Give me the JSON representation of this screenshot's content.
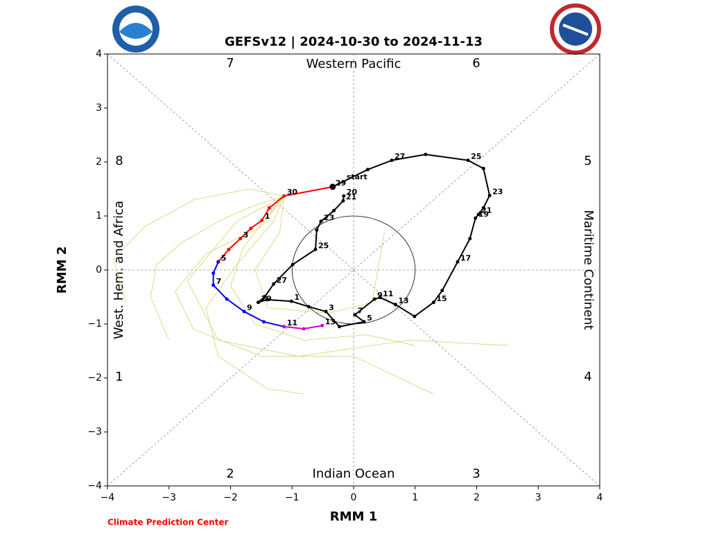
{
  "chart_data": {
    "type": "line",
    "title": "GEFSv12 | 2024-10-30 to 2024-11-13",
    "x_label": "RMM 1",
    "y_label": "RMM 2",
    "xlim": [
      -4,
      4
    ],
    "ylim": [
      -4,
      4
    ],
    "xticks": [
      {
        "value": -4,
        "label": "−4"
      },
      {
        "value": -3,
        "label": "−3"
      },
      {
        "value": -2,
        "label": "−2"
      },
      {
        "value": -1,
        "label": "−1"
      },
      0,
      1,
      2,
      3,
      4
    ],
    "yticks": [
      {
        "value": -4,
        "label": "−4"
      },
      {
        "value": -3,
        "label": "−3"
      },
      {
        "value": -2,
        "label": "−2"
      },
      {
        "value": -1,
        "label": "−1"
      },
      0,
      1,
      2,
      3,
      4
    ],
    "regions": {
      "top": "Western Pacific",
      "bottom": "Indian Ocean",
      "left": "West. Hem. and Africa",
      "right": "Maritime Continent"
    },
    "phases": [
      "1",
      "2",
      "3",
      "4",
      "5",
      "6",
      "7",
      "8"
    ],
    "start_label": "start",
    "credit": "Climate Prediction Center",
    "series": [
      {
        "role": "ensemble",
        "color": "#d2d26a",
        "x": [
          -1.13,
          -1.6,
          -2.2,
          -2.8,
          -3.2,
          -3.3,
          -3.0
        ],
        "y": [
          1.37,
          1.2,
          0.9,
          0.5,
          0.1,
          -0.5,
          -1.3
        ]
      },
      {
        "role": "ensemble",
        "color": "#d2d26a",
        "x": [
          -1.13,
          -1.4,
          -1.8,
          -2.0,
          -1.6,
          -0.8,
          0.2,
          1.0
        ],
        "y": [
          1.37,
          1.0,
          0.4,
          -0.3,
          -1.0,
          -1.3,
          -1.2,
          -1.4
        ]
      },
      {
        "role": "ensemble",
        "color": "#d2d26a",
        "x": [
          -1.13,
          -1.7,
          -2.6,
          -3.4,
          -3.9,
          -3.7
        ],
        "y": [
          1.37,
          1.5,
          1.3,
          0.8,
          0.2,
          -0.6
        ]
      },
      {
        "role": "ensemble",
        "color": "#d2d26a",
        "x": [
          -1.13,
          -1.3,
          -1.9,
          -2.4,
          -2.2,
          -1.4,
          -0.8
        ],
        "y": [
          1.37,
          0.9,
          0.1,
          -0.7,
          -1.6,
          -2.2,
          -2.3
        ]
      },
      {
        "role": "ensemble",
        "color": "#d2d26a",
        "x": [
          -1.13,
          -1.5,
          -2.4,
          -2.9,
          -2.6,
          -1.5,
          0.0,
          1.3
        ],
        "y": [
          1.37,
          0.8,
          0.3,
          -0.4,
          -1.1,
          -1.6,
          -1.6,
          -2.3
        ]
      },
      {
        "role": "ensemble",
        "color": "#d2d26a",
        "x": [
          -1.13,
          -1.2,
          -1.6,
          -1.4,
          -0.4,
          0.3,
          0.5
        ],
        "y": [
          1.37,
          0.7,
          0.0,
          -0.7,
          -0.8,
          -0.6,
          0.7
        ]
      },
      {
        "role": "ensemble",
        "color": "#d2d26a",
        "x": [
          -1.13,
          -1.9,
          -2.7,
          -2.2,
          -0.9,
          0.9,
          2.5
        ],
        "y": [
          1.37,
          0.9,
          -0.2,
          -1.3,
          -1.6,
          -1.3,
          -1.4
        ]
      },
      {
        "role": "observed",
        "color": "#000000",
        "x": [
          -0.16,
          -0.17,
          -0.32,
          -0.53,
          -0.6,
          -0.62,
          -0.99,
          -1.3,
          -1.44,
          -1.55,
          -1.41,
          -1.01,
          -0.73,
          -0.45,
          -0.23,
          0.17,
          0.02,
          0.34,
          0.43,
          0.68,
          0.99,
          1.3,
          1.44,
          1.69,
          1.89,
          1.98,
          2.03,
          2.11,
          2.21,
          2.11,
          1.86,
          1.17,
          0.62,
          0.23,
          -0.34
        ],
        "y": [
          1.37,
          1.28,
          1.1,
          0.9,
          0.74,
          0.38,
          0.1,
          -0.26,
          -0.49,
          -0.6,
          -0.55,
          -0.58,
          -0.68,
          -0.77,
          -1.05,
          -0.96,
          -0.83,
          -0.54,
          -0.51,
          -0.64,
          -0.86,
          -0.6,
          -0.38,
          0.15,
          0.58,
          0.96,
          1.03,
          1.15,
          1.38,
          1.88,
          2.03,
          2.14,
          2.03,
          1.86,
          1.54
        ],
        "labels": [
          "20",
          "21",
          null,
          "23",
          null,
          "25",
          null,
          "27",
          null,
          "29",
          null,
          "1",
          null,
          "3",
          null,
          "5",
          "7",
          "9",
          "11",
          "13",
          null,
          "15",
          null,
          "17",
          null,
          "19",
          "21",
          null,
          "23",
          null,
          "25",
          null,
          "27",
          null,
          "29"
        ]
      },
      {
        "role": "forecast",
        "color": "#ff0000",
        "x": [
          -0.34,
          -1.13,
          -1.37,
          -1.49,
          -1.67,
          -1.84,
          -2.03,
          -2.2
        ],
        "y": [
          1.54,
          1.37,
          1.15,
          0.92,
          0.77,
          0.58,
          0.38,
          0.15
        ],
        "labels": [
          null,
          "30",
          null,
          "1",
          null,
          "3",
          null,
          "5"
        ]
      },
      {
        "role": "forecast",
        "color": "#0000ff",
        "x": [
          -2.2,
          -2.28,
          -2.28,
          -2.06,
          -1.78,
          -1.46,
          -1.13
        ],
        "y": [
          0.15,
          -0.06,
          -0.28,
          -0.54,
          -0.77,
          -0.96,
          -1.05
        ],
        "labels": [
          null,
          null,
          "7",
          null,
          "9",
          null,
          "11"
        ]
      },
      {
        "role": "forecast",
        "color": "#cc00cc",
        "x": [
          -1.13,
          -0.81,
          -0.51
        ],
        "y": [
          -1.05,
          -1.09,
          -1.03
        ],
        "labels": [
          null,
          null,
          "13"
        ]
      }
    ]
  }
}
